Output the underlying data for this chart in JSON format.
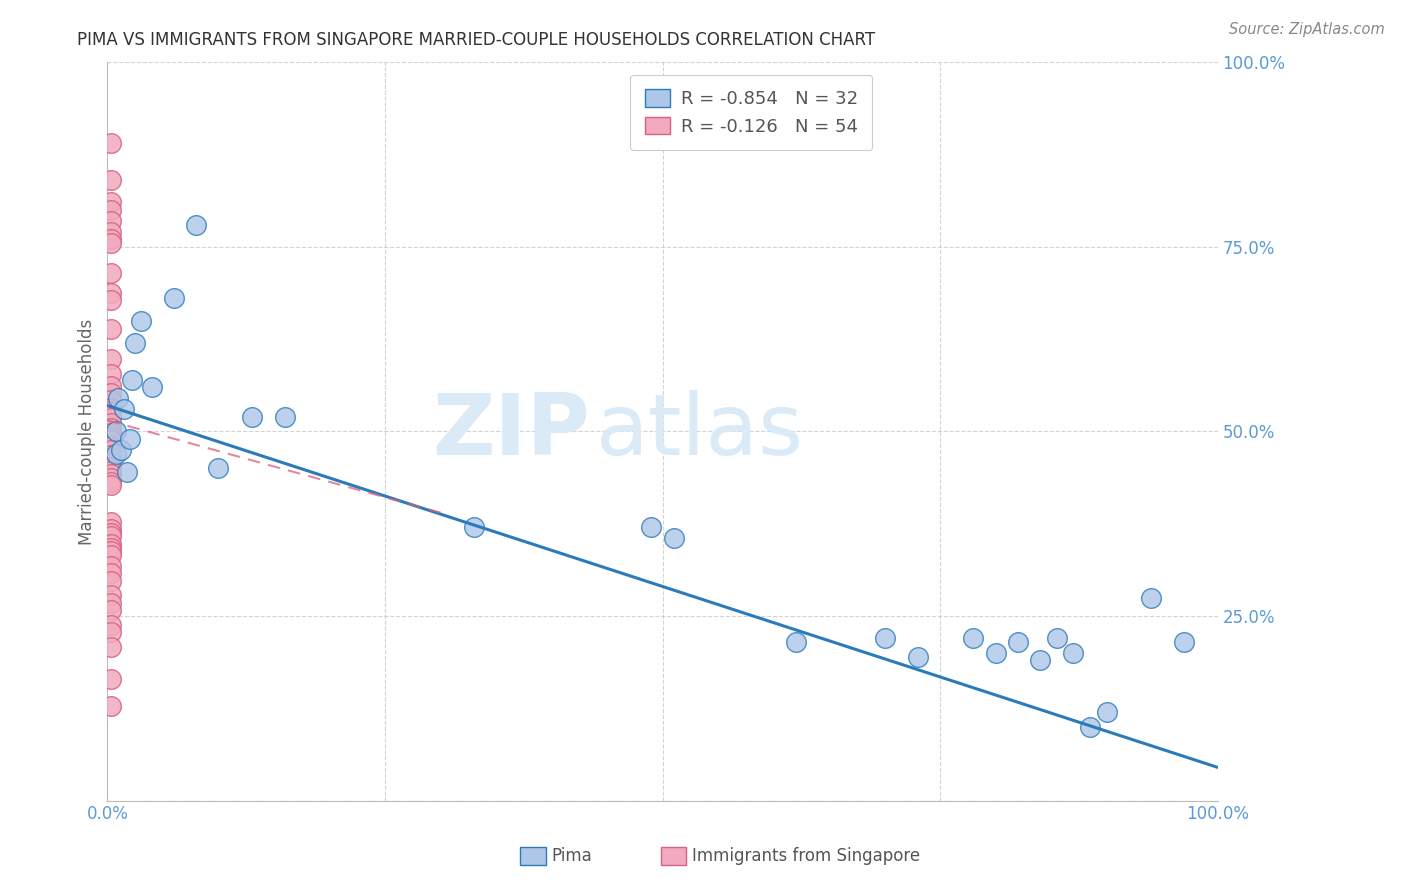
{
  "title": "PIMA VS IMMIGRANTS FROM SINGAPORE MARRIED-COUPLE HOUSEHOLDS CORRELATION CHART",
  "source": "Source: ZipAtlas.com",
  "ylabel": "Married-couple Households",
  "xlim": [
    0,
    1.0
  ],
  "ylim": [
    0,
    1.0
  ],
  "legend_label1": "Pima",
  "legend_label2": "Immigrants from Singapore",
  "R1": -0.854,
  "N1": 32,
  "R2": -0.126,
  "N2": 54,
  "color_blue": "#aec6e8",
  "color_pink": "#f2aabe",
  "line_blue": "#2b7bba",
  "line_pink": "#d96080",
  "pima_x": [
    0.008,
    0.008,
    0.01,
    0.012,
    0.015,
    0.018,
    0.02,
    0.022,
    0.025,
    0.03,
    0.04,
    0.06,
    0.08,
    0.1,
    0.13,
    0.16,
    0.33,
    0.49,
    0.51,
    0.62,
    0.7,
    0.73,
    0.78,
    0.8,
    0.82,
    0.84,
    0.855,
    0.87,
    0.885,
    0.9,
    0.94,
    0.97
  ],
  "pima_y": [
    0.5,
    0.47,
    0.545,
    0.475,
    0.53,
    0.445,
    0.49,
    0.57,
    0.62,
    0.65,
    0.56,
    0.68,
    0.78,
    0.45,
    0.52,
    0.52,
    0.37,
    0.37,
    0.355,
    0.215,
    0.22,
    0.195,
    0.22,
    0.2,
    0.215,
    0.19,
    0.22,
    0.2,
    0.1,
    0.12,
    0.275,
    0.215
  ],
  "singapore_x": [
    0.003,
    0.003,
    0.003,
    0.003,
    0.003,
    0.003,
    0.003,
    0.003,
    0.003,
    0.003,
    0.003,
    0.003,
    0.003,
    0.003,
    0.003,
    0.003,
    0.003,
    0.003,
    0.003,
    0.003,
    0.003,
    0.003,
    0.003,
    0.003,
    0.003,
    0.003,
    0.003,
    0.003,
    0.003,
    0.003,
    0.003,
    0.003,
    0.003,
    0.003,
    0.003,
    0.003,
    0.003,
    0.003,
    0.003,
    0.003,
    0.003,
    0.003,
    0.003,
    0.003,
    0.003,
    0.003,
    0.003,
    0.003,
    0.003,
    0.003,
    0.003,
    0.003,
    0.003,
    0.003
  ],
  "singapore_y": [
    0.89,
    0.84,
    0.81,
    0.8,
    0.785,
    0.77,
    0.76,
    0.755,
    0.715,
    0.688,
    0.678,
    0.638,
    0.598,
    0.578,
    0.562,
    0.552,
    0.542,
    0.532,
    0.527,
    0.518,
    0.512,
    0.505,
    0.498,
    0.492,
    0.488,
    0.48,
    0.475,
    0.468,
    0.458,
    0.452,
    0.447,
    0.442,
    0.437,
    0.432,
    0.427,
    0.377,
    0.368,
    0.362,
    0.358,
    0.348,
    0.342,
    0.338,
    0.332,
    0.318,
    0.308,
    0.298,
    0.278,
    0.268,
    0.258,
    0.238,
    0.228,
    0.208,
    0.165,
    0.128
  ],
  "pima_line_x": [
    0.0,
    1.0
  ],
  "pima_line_y": [
    0.535,
    0.045
  ],
  "sing_line_x": [
    0.0,
    0.3
  ],
  "sing_line_y": [
    0.515,
    0.39
  ],
  "watermark_zip": "ZIP",
  "watermark_atlas": "atlas",
  "background_color": "#ffffff",
  "grid_color": "#c8c8c8"
}
